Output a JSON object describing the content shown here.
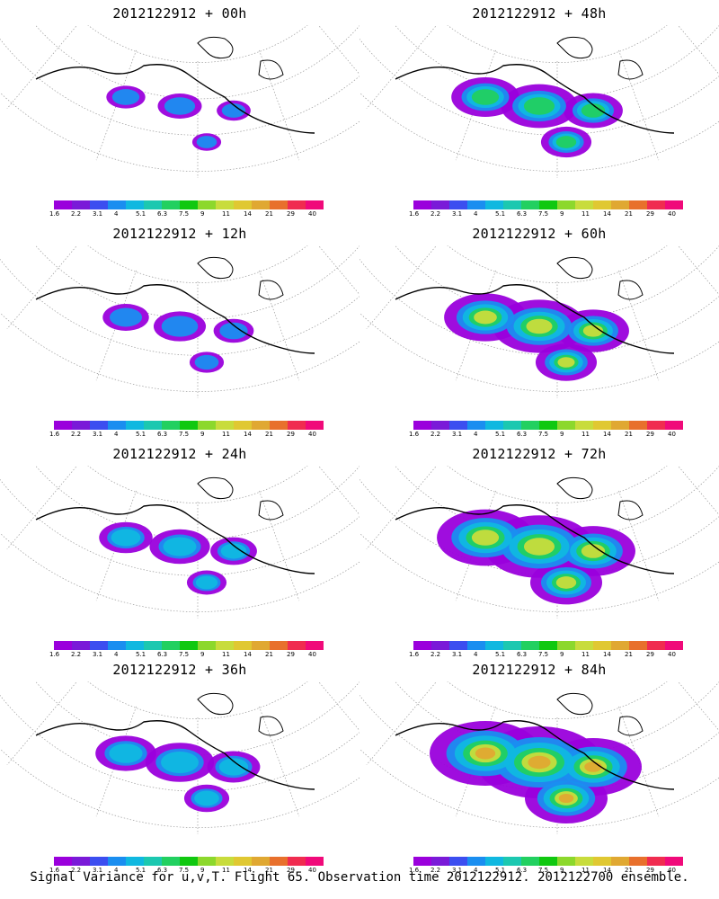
{
  "panels": [
    {
      "title": "2012122912 + 00h",
      "level": 0
    },
    {
      "title": "2012122912 + 48h",
      "level": 2
    },
    {
      "title": "2012122912 + 12h",
      "level": 0.5
    },
    {
      "title": "2012122912 + 60h",
      "level": 3
    },
    {
      "title": "2012122912 + 24h",
      "level": 1
    },
    {
      "title": "2012122912 + 72h",
      "level": 4
    },
    {
      "title": "2012122912 + 36h",
      "level": 1.5
    },
    {
      "title": "2012122912 + 84h",
      "level": 5
    }
  ],
  "colorbar": {
    "colors": [
      "#9a00dc",
      "#7a1ad8",
      "#3c4ef0",
      "#1a8ef0",
      "#10b8e0",
      "#1cc8b0",
      "#22d060",
      "#10c810",
      "#8cd82c",
      "#c8dc3c",
      "#e0c832",
      "#e0a832",
      "#e8702c",
      "#f02c50",
      "#f00a7a"
    ],
    "labels": [
      "1.6",
      "2.2",
      "3.1",
      "4",
      "5.1",
      "6.3",
      "7.5",
      "9",
      "11",
      "14",
      "21",
      "29",
      "40"
    ]
  },
  "caption": "Signal Variance for u,v,T. Flight 65. Observation time 2012122912. 2012122700 ensemble."
}
